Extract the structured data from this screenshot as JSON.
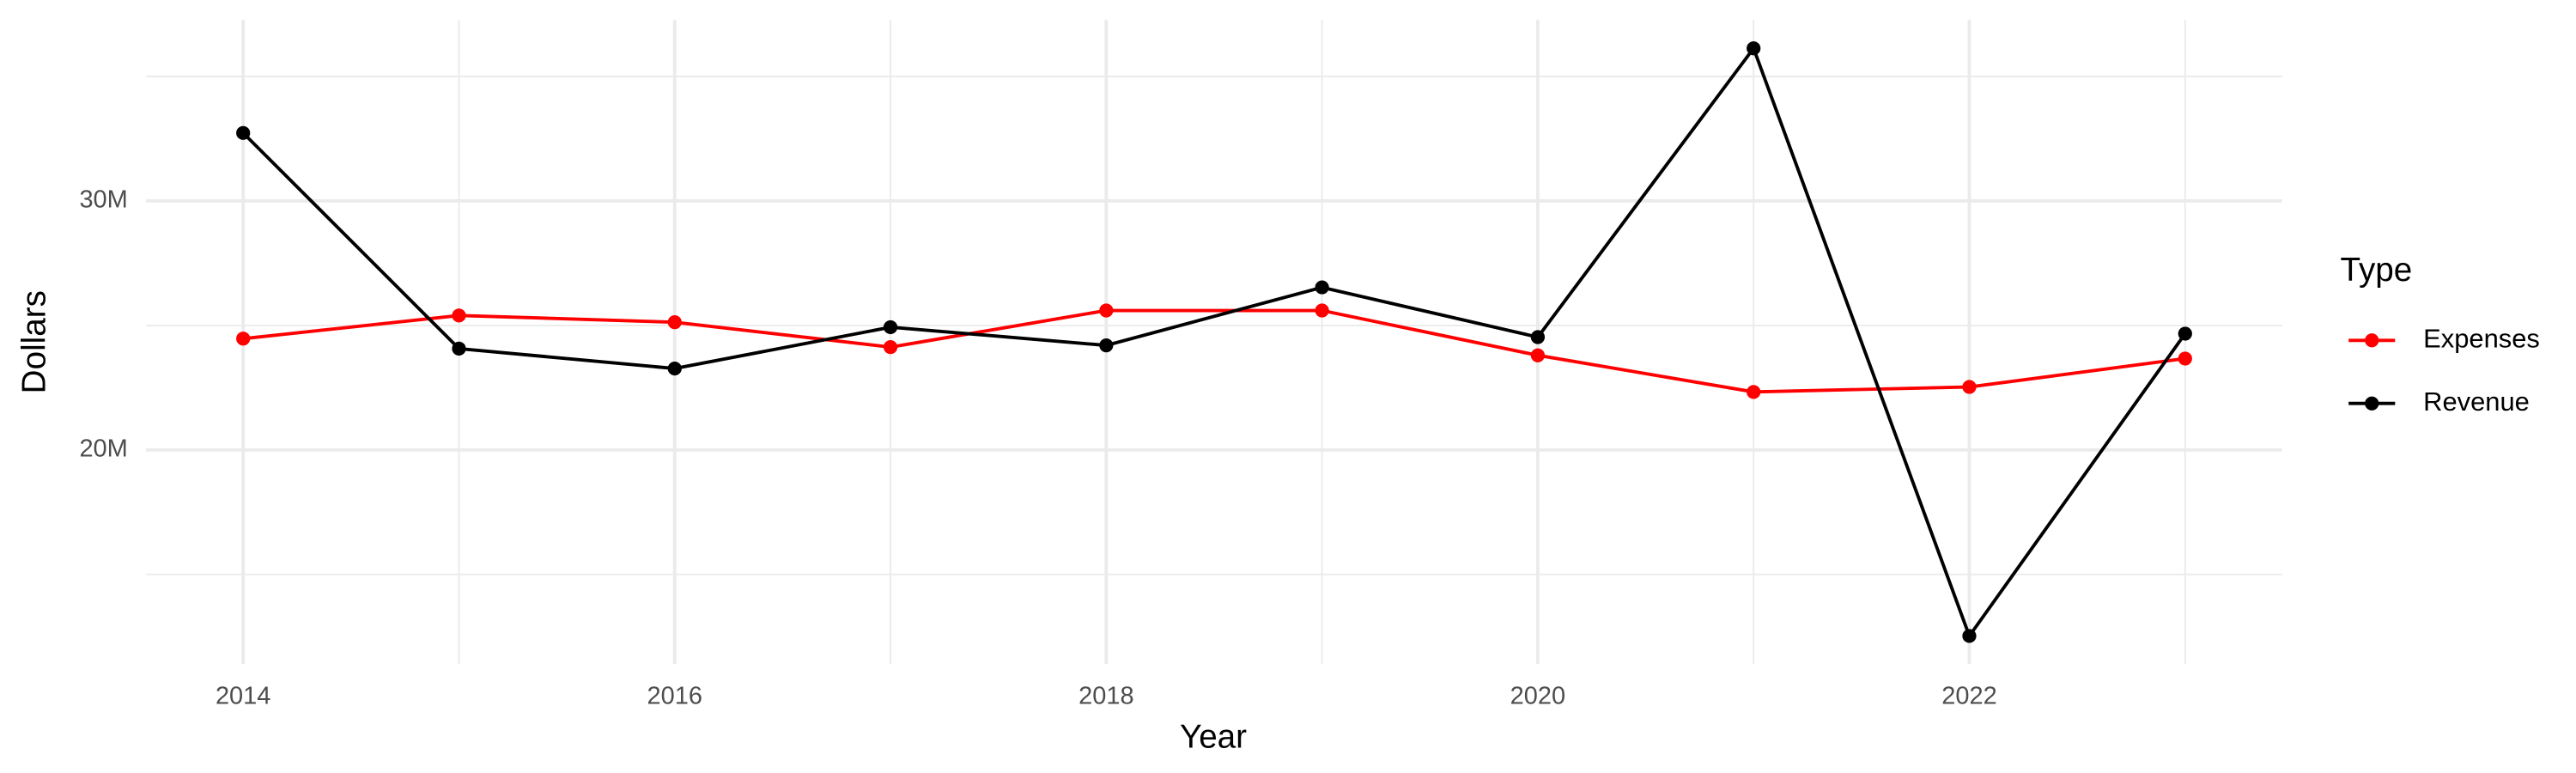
{
  "chart_data": {
    "type": "line",
    "x_label": "Year",
    "y_label": "Dollars",
    "legend_title": "Type",
    "legend_position": "right",
    "grid": true,
    "minor_grid": true,
    "x": [
      2014,
      2015,
      2016,
      2017,
      2018,
      2019,
      2020,
      2021,
      2022,
      2023
    ],
    "series": [
      {
        "name": "Expenses",
        "color": "#ff0000",
        "values": [
          24470000,
          25400000,
          25130000,
          24130000,
          25600000,
          25600000,
          23800000,
          22330000,
          22530000,
          23670000
        ]
      },
      {
        "name": "Revenue",
        "color": "#000000",
        "values": [
          32730000,
          24070000,
          23270000,
          24930000,
          24200000,
          26530000,
          24530000,
          36130000,
          12530000,
          24670000
        ]
      }
    ],
    "xlim": [
      2013.55,
      2023.45
    ],
    "xticks": [
      2014,
      2016,
      2018,
      2020,
      2022
    ],
    "ylim": [
      11400000,
      37270000
    ],
    "yticks": [
      {
        "value": 20000000,
        "label": "20M"
      },
      {
        "value": 30000000,
        "label": "30M"
      }
    ]
  }
}
